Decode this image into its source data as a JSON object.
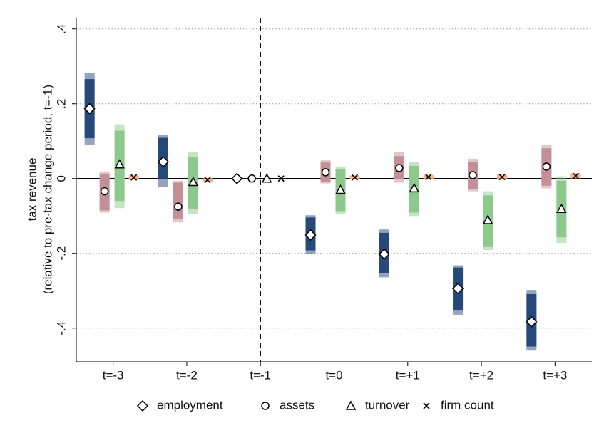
{
  "chart_data": {
    "type": "coefplot",
    "y_label": [
      "tax revenue",
      "(relative to pre-tax change period, t=-1)"
    ],
    "categories": [
      "t=-3",
      "t=-2",
      "t=-1",
      "t=0",
      "t=+1",
      "t=+2",
      "t=+3"
    ],
    "ylim": [
      -0.49,
      0.43
    ],
    "yticks": [
      {
        "value": -0.4,
        "label": "-.4"
      },
      {
        "value": -0.2,
        "label": "-.2"
      },
      0,
      {
        "value": 0.2,
        "label": ".2"
      },
      {
        "value": 0.4,
        "label": ".4"
      }
    ],
    "grid": true,
    "hline": 0,
    "vline": "t=-1",
    "legend": "bottom",
    "series": [
      {
        "name": "employment",
        "marker": "diamond",
        "color": "#27497a",
        "values": [
          0.187,
          0.045,
          0,
          -0.151,
          -0.202,
          -0.294,
          -0.383
        ],
        "ci_inner_low": [
          0.108,
          0.0,
          null,
          -0.192,
          -0.253,
          -0.353,
          -0.449
        ],
        "ci_inner_high": [
          0.266,
          0.109,
          null,
          -0.104,
          -0.145,
          -0.238,
          -0.309
        ],
        "ci_outer_low": [
          0.091,
          -0.023,
          null,
          -0.202,
          -0.264,
          -0.364,
          -0.46
        ],
        "ci_outer_high": [
          0.283,
          0.117,
          null,
          -0.098,
          -0.136,
          -0.232,
          -0.298
        ]
      },
      {
        "name": "assets",
        "marker": "circle",
        "color": "#c49097",
        "values": [
          -0.034,
          -0.075,
          0,
          0.017,
          0.028,
          0.009,
          0.032
        ],
        "ci_inner_low": [
          -0.085,
          -0.109,
          null,
          -0.008,
          -0.002,
          -0.028,
          -0.019
        ],
        "ci_inner_high": [
          0.013,
          -0.011,
          null,
          0.043,
          0.06,
          0.045,
          0.081
        ],
        "ci_outer_low": [
          -0.091,
          -0.117,
          null,
          -0.013,
          -0.011,
          -0.034,
          -0.026
        ],
        "ci_outer_high": [
          0.019,
          -0.006,
          null,
          0.049,
          0.07,
          0.053,
          0.089
        ]
      },
      {
        "name": "turnover",
        "marker": "triangle",
        "color": "#8dc98d",
        "values": [
          0.038,
          -0.009,
          0,
          -0.03,
          -0.026,
          -0.111,
          -0.081
        ],
        "ci_inner_low": [
          -0.06,
          -0.081,
          null,
          -0.087,
          -0.091,
          -0.183,
          -0.157
        ],
        "ci_inner_high": [
          0.128,
          0.058,
          null,
          0.025,
          0.034,
          -0.045,
          -0.006
        ],
        "ci_outer_low": [
          -0.079,
          -0.094,
          null,
          -0.096,
          -0.102,
          -0.191,
          -0.172
        ],
        "ci_outer_high": [
          0.145,
          0.072,
          null,
          0.032,
          0.045,
          -0.034,
          0.006
        ]
      },
      {
        "name": "firm count",
        "marker": "x",
        "color": "#f4b183",
        "values": [
          0.003,
          -0.004,
          0,
          0.003,
          0.004,
          0.004,
          0.007
        ],
        "ci_inner_low": [
          -0.002,
          -0.008,
          null,
          -0.001,
          0.0,
          0.0,
          0.002
        ],
        "ci_inner_high": [
          0.008,
          0.0,
          null,
          0.007,
          0.009,
          0.009,
          0.013
        ],
        "ci_outer_low": [
          -0.004,
          -0.01,
          null,
          -0.003,
          -0.002,
          -0.002,
          0.0
        ],
        "ci_outer_high": [
          0.01,
          0.002,
          null,
          0.009,
          0.011,
          0.011,
          0.015
        ]
      }
    ]
  }
}
